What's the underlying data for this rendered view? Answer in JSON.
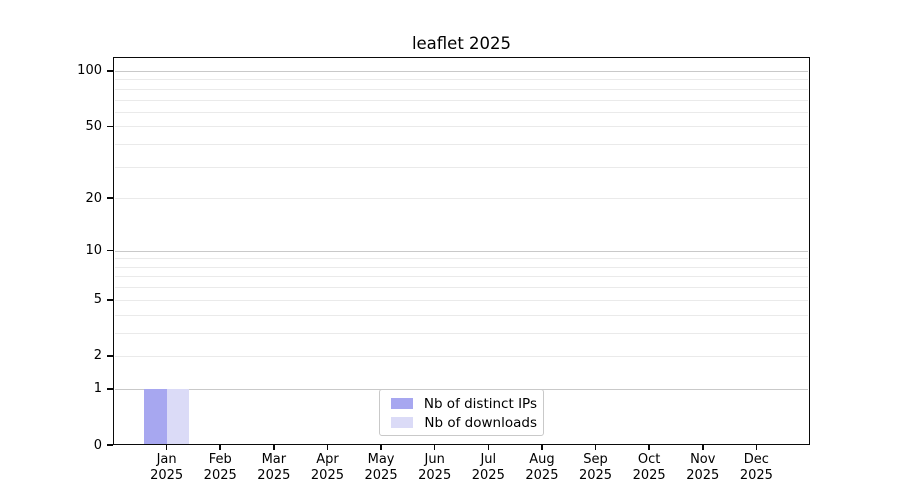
{
  "chart_data": {
    "type": "bar",
    "title": "leaflet 2025",
    "categories": [
      "Jan",
      "Feb",
      "Mar",
      "Apr",
      "May",
      "Jun",
      "Jul",
      "Aug",
      "Sep",
      "Oct",
      "Nov",
      "Dec"
    ],
    "x_tick_year": "2025",
    "series": [
      {
        "name": "Nb of distinct IPs",
        "color": "#a7a7f0",
        "values": [
          1,
          0,
          0,
          0,
          0,
          0,
          0,
          0,
          0,
          0,
          0,
          0
        ]
      },
      {
        "name": "Nb of downloads",
        "color": "#dbdbf7",
        "values": [
          1,
          0,
          0,
          0,
          0,
          0,
          0,
          0,
          0,
          0,
          0,
          0
        ]
      }
    ],
    "y_axis": {
      "scale": "log1p",
      "ticks": [
        0,
        1,
        2,
        5,
        10,
        20,
        50,
        100
      ],
      "major_gridlines": [
        1,
        10,
        100
      ],
      "minor_gridlines": [
        2,
        3,
        4,
        5,
        6,
        7,
        8,
        9,
        20,
        30,
        40,
        50,
        60,
        70,
        80,
        90
      ],
      "ylim": [
        0,
        119
      ]
    },
    "x_axis": {
      "xlim_units": [
        -1,
        12
      ]
    },
    "legend": {
      "position": "bottom-center"
    },
    "grid": true,
    "background": "#ffffff"
  },
  "colors": {
    "major_gridline": "#c9c9c9",
    "minor_gridline": "#eaeaea",
    "axis_frame": "#0a0a0a",
    "legend_border": "#c9c9c9",
    "text": "#000000"
  }
}
